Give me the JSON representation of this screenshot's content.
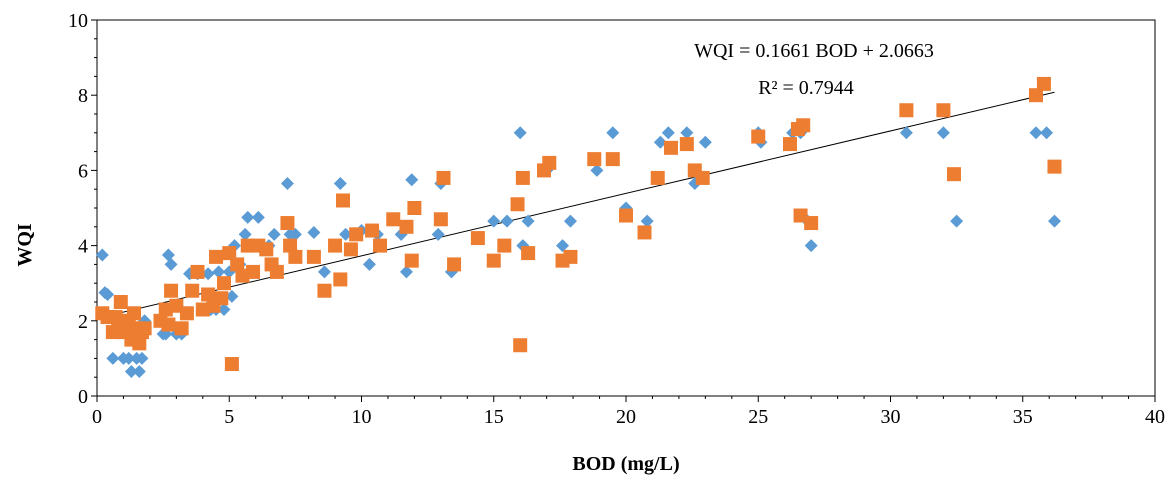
{
  "chart_data": {
    "type": "scatter",
    "title": "",
    "xlabel": "BOD (mg/L)",
    "ylabel": "WQI",
    "xlim": [
      0,
      40
    ],
    "ylim": [
      0,
      10
    ],
    "xticks": [
      "0",
      "5",
      "10",
      "15",
      "20",
      "25",
      "30",
      "35",
      "40"
    ],
    "yticks": [
      "0",
      "2",
      "4",
      "6",
      "8",
      "10"
    ],
    "grid": false,
    "legend": "none",
    "annotations": [
      "WQI = 0.1661 BOD + 2.0663",
      "R² = 0.7944"
    ],
    "trendline": {
      "slope": 0.1661,
      "intercept": 2.0663,
      "x_range": [
        0.1,
        36.2
      ],
      "color": "#000000"
    },
    "series": [
      {
        "marker": "diamond",
        "color": "#5B9BD5",
        "points": [
          [
            0.2,
            3.75
          ],
          [
            0.3,
            2.75
          ],
          [
            0.4,
            2.7
          ],
          [
            0.5,
            2.1
          ],
          [
            0.6,
            1.0
          ],
          [
            0.7,
            1.7
          ],
          [
            0.8,
            2.1
          ],
          [
            1.0,
            1.0
          ],
          [
            1.1,
            2.0
          ],
          [
            1.2,
            1.0
          ],
          [
            1.3,
            0.65
          ],
          [
            1.4,
            1.8
          ],
          [
            1.5,
            1.0
          ],
          [
            1.6,
            0.65
          ],
          [
            1.7,
            1.0
          ],
          [
            1.8,
            2.0
          ],
          [
            2.5,
            1.65
          ],
          [
            2.6,
            1.65
          ],
          [
            2.7,
            3.75
          ],
          [
            2.8,
            3.5
          ],
          [
            3.0,
            1.65
          ],
          [
            3.2,
            1.65
          ],
          [
            3.5,
            3.25
          ],
          [
            3.8,
            3.25
          ],
          [
            4.2,
            3.25
          ],
          [
            4.3,
            2.3
          ],
          [
            4.5,
            2.3
          ],
          [
            4.6,
            3.3
          ],
          [
            4.8,
            2.3
          ],
          [
            5.0,
            3.3
          ],
          [
            5.1,
            2.65
          ],
          [
            5.2,
            4.0
          ],
          [
            5.4,
            3.5
          ],
          [
            5.6,
            4.3
          ],
          [
            5.7,
            4.75
          ],
          [
            6.1,
            4.75
          ],
          [
            6.5,
            4.0
          ],
          [
            6.7,
            4.3
          ],
          [
            7.2,
            5.65
          ],
          [
            7.3,
            4.3
          ],
          [
            7.5,
            4.3
          ],
          [
            8.2,
            4.35
          ],
          [
            8.6,
            3.3
          ],
          [
            9.0,
            4.0
          ],
          [
            9.2,
            5.65
          ],
          [
            9.4,
            4.3
          ],
          [
            10.0,
            4.4
          ],
          [
            10.3,
            3.5
          ],
          [
            10.6,
            4.3
          ],
          [
            11.5,
            4.3
          ],
          [
            11.7,
            3.3
          ],
          [
            11.9,
            5.75
          ],
          [
            12.9,
            4.3
          ],
          [
            13.0,
            5.65
          ],
          [
            13.4,
            3.3
          ],
          [
            15.0,
            4.65
          ],
          [
            15.5,
            4.65
          ],
          [
            16.0,
            7.0
          ],
          [
            16.1,
            4.0
          ],
          [
            16.3,
            4.65
          ],
          [
            17.0,
            6.0
          ],
          [
            17.6,
            4.0
          ],
          [
            17.9,
            4.65
          ],
          [
            18.9,
            6.0
          ],
          [
            19.5,
            7.0
          ],
          [
            20.0,
            5.0
          ],
          [
            20.8,
            4.65
          ],
          [
            21.3,
            6.75
          ],
          [
            21.6,
            7.0
          ],
          [
            22.3,
            7.0
          ],
          [
            22.6,
            5.65
          ],
          [
            23.0,
            6.75
          ],
          [
            25.0,
            7.0
          ],
          [
            25.1,
            6.75
          ],
          [
            26.3,
            7.0
          ],
          [
            26.6,
            7.0
          ],
          [
            26.8,
            4.7
          ],
          [
            27.0,
            4.0
          ],
          [
            30.6,
            7.0
          ],
          [
            32.0,
            7.0
          ],
          [
            32.5,
            4.65
          ],
          [
            35.5,
            7.0
          ],
          [
            35.9,
            7.0
          ],
          [
            36.2,
            4.65
          ]
        ]
      },
      {
        "marker": "square",
        "color": "#ED7D31",
        "points": [
          [
            0.2,
            2.2
          ],
          [
            0.4,
            2.1
          ],
          [
            0.6,
            1.7
          ],
          [
            0.7,
            2.1
          ],
          [
            0.8,
            1.8
          ],
          [
            0.9,
            2.5
          ],
          [
            1.0,
            1.7
          ],
          [
            1.1,
            2.0
          ],
          [
            1.2,
            1.9
          ],
          [
            1.3,
            1.5
          ],
          [
            1.4,
            2.2
          ],
          [
            1.5,
            1.8
          ],
          [
            1.6,
            1.4
          ],
          [
            1.7,
            1.7
          ],
          [
            1.8,
            1.8
          ],
          [
            2.4,
            2.0
          ],
          [
            2.6,
            2.3
          ],
          [
            2.7,
            1.9
          ],
          [
            2.8,
            2.8
          ],
          [
            3.0,
            2.4
          ],
          [
            3.2,
            1.8
          ],
          [
            3.4,
            2.2
          ],
          [
            3.6,
            2.8
          ],
          [
            3.8,
            3.3
          ],
          [
            4.0,
            2.3
          ],
          [
            4.2,
            2.7
          ],
          [
            4.4,
            2.4
          ],
          [
            4.5,
            3.7
          ],
          [
            4.7,
            2.6
          ],
          [
            4.8,
            3.0
          ],
          [
            5.0,
            3.8
          ],
          [
            5.1,
            0.85
          ],
          [
            5.3,
            3.5
          ],
          [
            5.5,
            3.2
          ],
          [
            5.7,
            4.0
          ],
          [
            5.9,
            3.3
          ],
          [
            6.1,
            4.0
          ],
          [
            6.4,
            3.9
          ],
          [
            6.6,
            3.5
          ],
          [
            6.8,
            3.3
          ],
          [
            7.2,
            4.6
          ],
          [
            7.3,
            4.0
          ],
          [
            7.5,
            3.7
          ],
          [
            8.2,
            3.7
          ],
          [
            8.6,
            2.8
          ],
          [
            9.0,
            4.0
          ],
          [
            9.2,
            3.1
          ],
          [
            9.3,
            5.2
          ],
          [
            9.6,
            3.9
          ],
          [
            9.8,
            4.3
          ],
          [
            10.4,
            4.4
          ],
          [
            10.7,
            4.0
          ],
          [
            11.2,
            4.7
          ],
          [
            11.7,
            4.5
          ],
          [
            11.9,
            3.6
          ],
          [
            12.0,
            5.0
          ],
          [
            13.0,
            4.7
          ],
          [
            13.1,
            5.8
          ],
          [
            13.5,
            3.5
          ],
          [
            14.4,
            4.2
          ],
          [
            15.0,
            3.6
          ],
          [
            15.4,
            4.0
          ],
          [
            15.9,
            5.1
          ],
          [
            16.0,
            1.35
          ],
          [
            16.1,
            5.8
          ],
          [
            16.3,
            3.8
          ],
          [
            16.9,
            6.0
          ],
          [
            17.1,
            6.2
          ],
          [
            17.6,
            3.6
          ],
          [
            17.9,
            3.7
          ],
          [
            18.8,
            6.3
          ],
          [
            19.5,
            6.3
          ],
          [
            20.0,
            4.8
          ],
          [
            20.7,
            4.35
          ],
          [
            21.2,
            5.8
          ],
          [
            21.7,
            6.6
          ],
          [
            22.3,
            6.7
          ],
          [
            22.6,
            6.0
          ],
          [
            22.9,
            5.8
          ],
          [
            25.0,
            6.9
          ],
          [
            26.2,
            6.7
          ],
          [
            26.5,
            7.1
          ],
          [
            26.6,
            4.8
          ],
          [
            26.7,
            7.2
          ],
          [
            27.0,
            4.6
          ],
          [
            30.6,
            7.6
          ],
          [
            32.0,
            7.6
          ],
          [
            32.4,
            5.9
          ],
          [
            35.5,
            8.0
          ],
          [
            35.8,
            8.3
          ],
          [
            36.2,
            6.1
          ]
        ]
      }
    ]
  }
}
